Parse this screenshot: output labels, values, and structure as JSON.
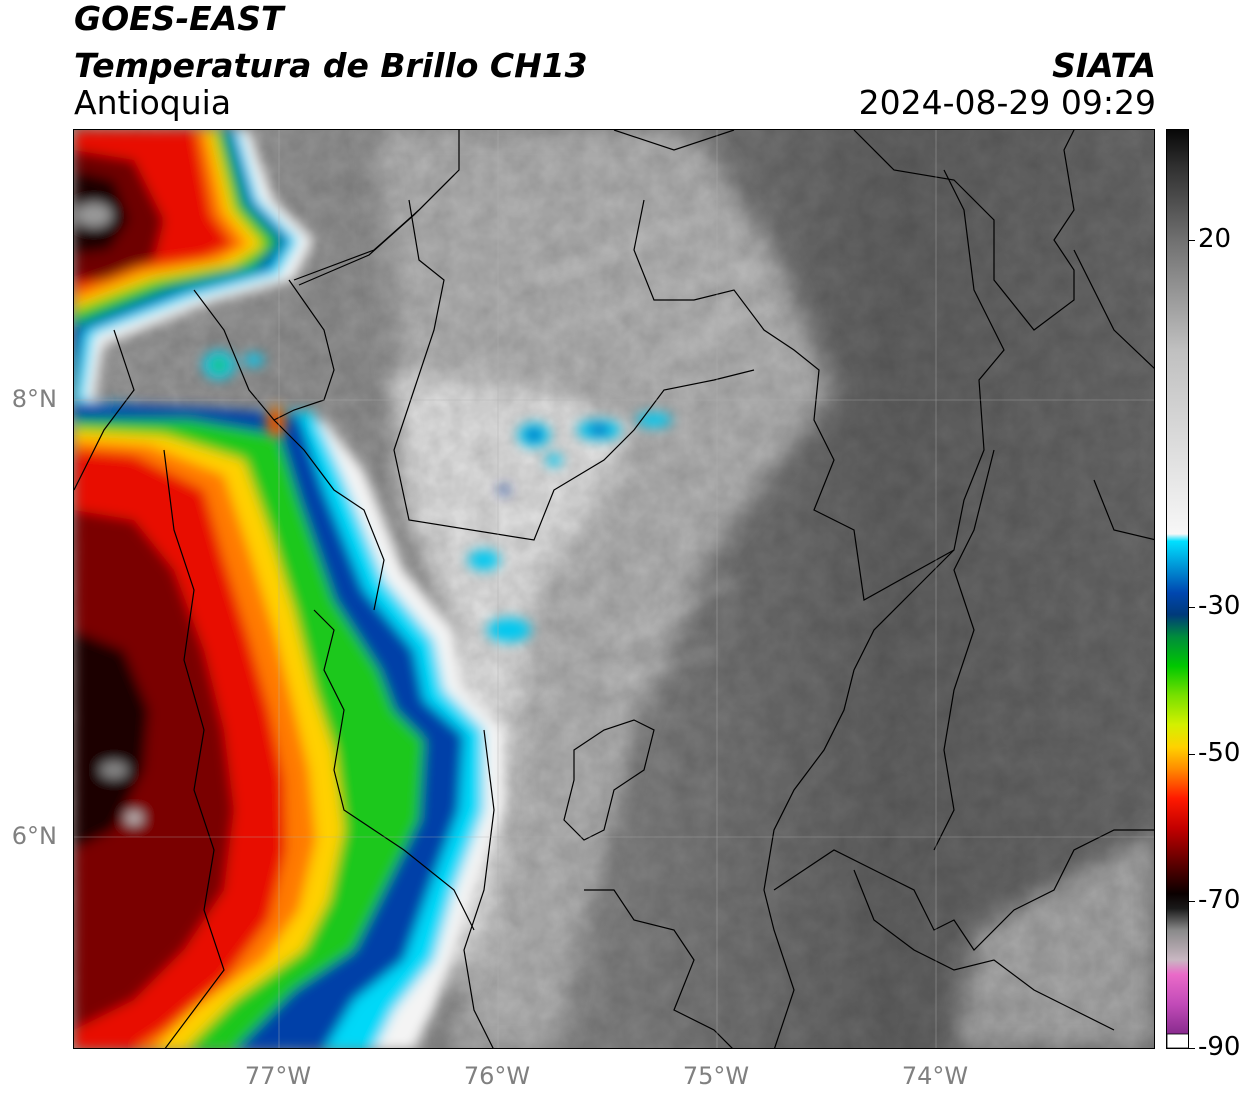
{
  "header": {
    "satellite": "GOES-EAST",
    "product": "Temperatura de Brillo CH13",
    "region": "Antioquia",
    "organization": "SIATA",
    "datetime": "2024-08-29 09:29"
  },
  "map": {
    "lat_ticks": [
      {
        "value": 8,
        "label": "8°N"
      },
      {
        "value": 6,
        "label": "6°N"
      }
    ],
    "lon_ticks": [
      {
        "value": -77,
        "label": "77°W"
      },
      {
        "value": -76,
        "label": "76°W"
      },
      {
        "value": -75,
        "label": "75°W"
      },
      {
        "value": -74,
        "label": "74°W"
      }
    ],
    "extent": {
      "lon_min": -77.94,
      "lon_max": -73.01,
      "lat_min": 5.05,
      "lat_max": 9.21
    }
  },
  "colorbar": {
    "range": [
      -90,
      35
    ],
    "ticks": [
      {
        "value": 20,
        "label": "20"
      },
      {
        "value": -30,
        "label": "-30"
      },
      {
        "value": -50,
        "label": "-50"
      },
      {
        "value": -70,
        "label": "-70"
      },
      {
        "value": -90,
        "label": "-90"
      }
    ],
    "stops": [
      {
        "v": -90,
        "c": "#ffffff"
      },
      {
        "v": -88,
        "c": "#8a2c8f"
      },
      {
        "v": -84,
        "c": "#c24bb8"
      },
      {
        "v": -80,
        "c": "#ea6ac8"
      },
      {
        "v": -78,
        "c": "#c9b7c2"
      },
      {
        "v": -74,
        "c": "#8a8a8a"
      },
      {
        "v": -71,
        "c": "#1a1a1a"
      },
      {
        "v": -69,
        "c": "#0a0000"
      },
      {
        "v": -65,
        "c": "#5a0000"
      },
      {
        "v": -60,
        "c": "#c40000"
      },
      {
        "v": -56,
        "c": "#ff1a00"
      },
      {
        "v": -52,
        "c": "#ff8c00"
      },
      {
        "v": -49,
        "c": "#ffd200"
      },
      {
        "v": -46,
        "c": "#d4f000"
      },
      {
        "v": -42,
        "c": "#78e000"
      },
      {
        "v": -38,
        "c": "#00c800"
      },
      {
        "v": -34,
        "c": "#008c3c"
      },
      {
        "v": -31,
        "c": "#003a7a"
      },
      {
        "v": -28,
        "c": "#0047b0"
      },
      {
        "v": -25,
        "c": "#0088d0"
      },
      {
        "v": -21,
        "c": "#00e0ff"
      },
      {
        "v": -20,
        "c": "#f7f7f7"
      },
      {
        "v": 5,
        "c": "#c0c0c0"
      },
      {
        "v": 20,
        "c": "#707070"
      },
      {
        "v": 30,
        "c": "#303030"
      },
      {
        "v": 35,
        "c": "#080808"
      }
    ]
  },
  "style": {
    "tick_color": "#808080",
    "land_gray": "#6e6e6e",
    "cloud_white": "#efefef"
  }
}
